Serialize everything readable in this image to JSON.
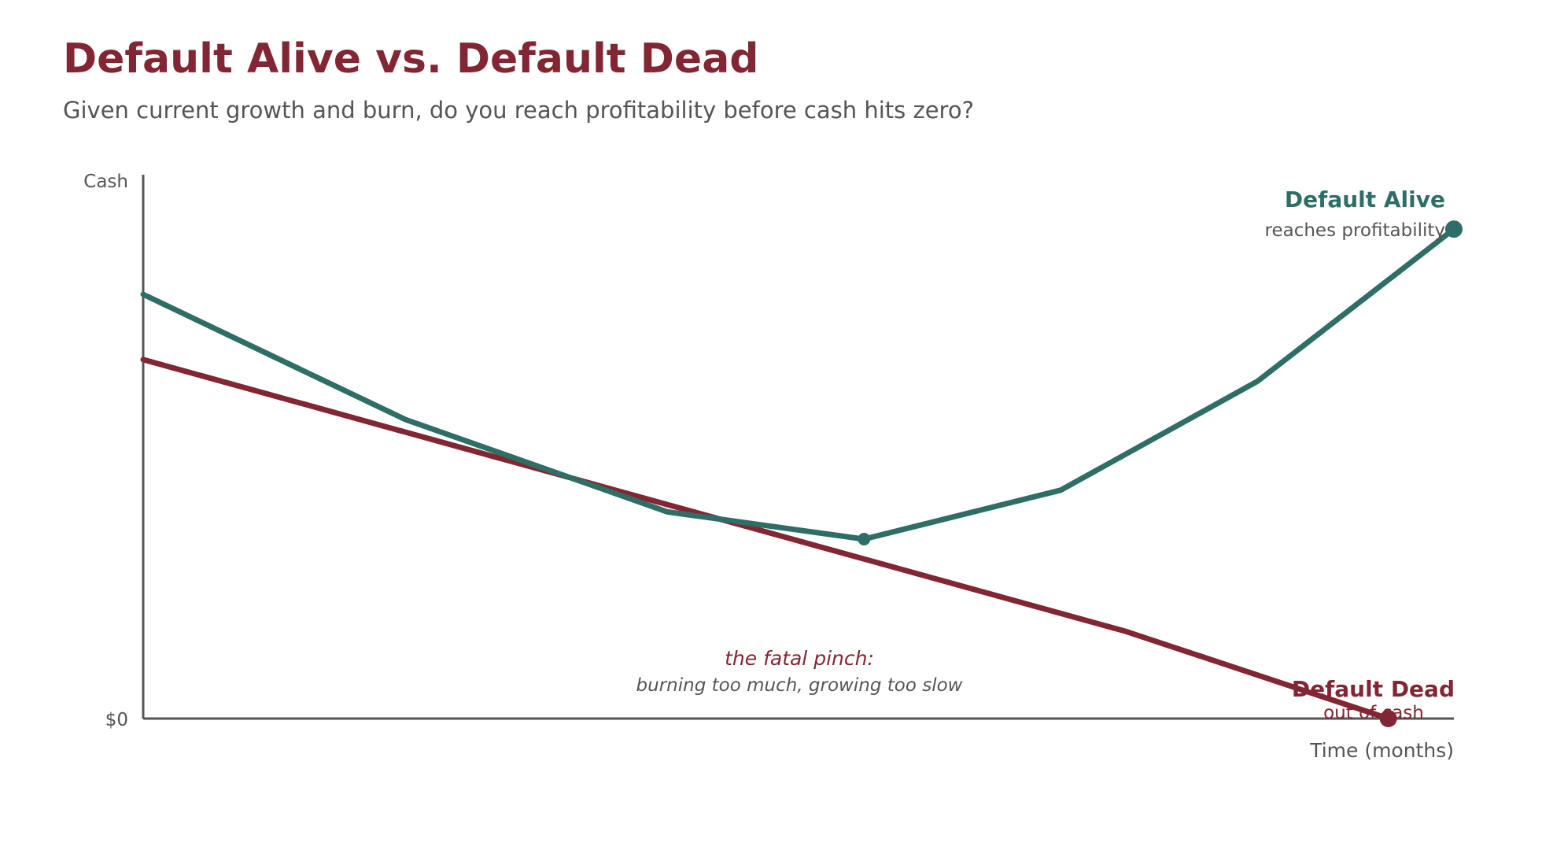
{
  "header": {
    "title": "Default Alive vs. Default Dead",
    "subtitle": "Given current growth and burn, do you reach profitability before cash hits zero?"
  },
  "colors": {
    "alive": "#2e6e66",
    "dead": "#832633",
    "axis": "#555555",
    "muted": "#555555"
  },
  "chart_data": {
    "type": "line",
    "title": "Default Alive vs. Default Dead",
    "subtitle": "Given current growth and burn, do you reach profitability before cash hits zero?",
    "xlabel": "Time (months)",
    "ylabel": "Cash",
    "y_tick_label": "$0",
    "xlim": [
      0,
      20
    ],
    "ylim": [
      0,
      100
    ],
    "grid": false,
    "legend": "none",
    "series": [
      {
        "name": "Default Alive",
        "sublabel": "reaches profitability",
        "x": [
          0,
          4,
          8,
          11,
          14,
          17,
          20
        ],
        "y": [
          78,
          55,
          38,
          33,
          42,
          62,
          90
        ],
        "marked_x": [
          11,
          20
        ]
      },
      {
        "name": "Default Dead",
        "sublabel": "out of cash",
        "x": [
          0,
          15,
          19
        ],
        "y": [
          66,
          16,
          0
        ],
        "marked_x": [
          19
        ]
      }
    ],
    "annotation": {
      "line1": "the fatal pinch:",
      "line2": "burning too much, growing too slow"
    }
  }
}
